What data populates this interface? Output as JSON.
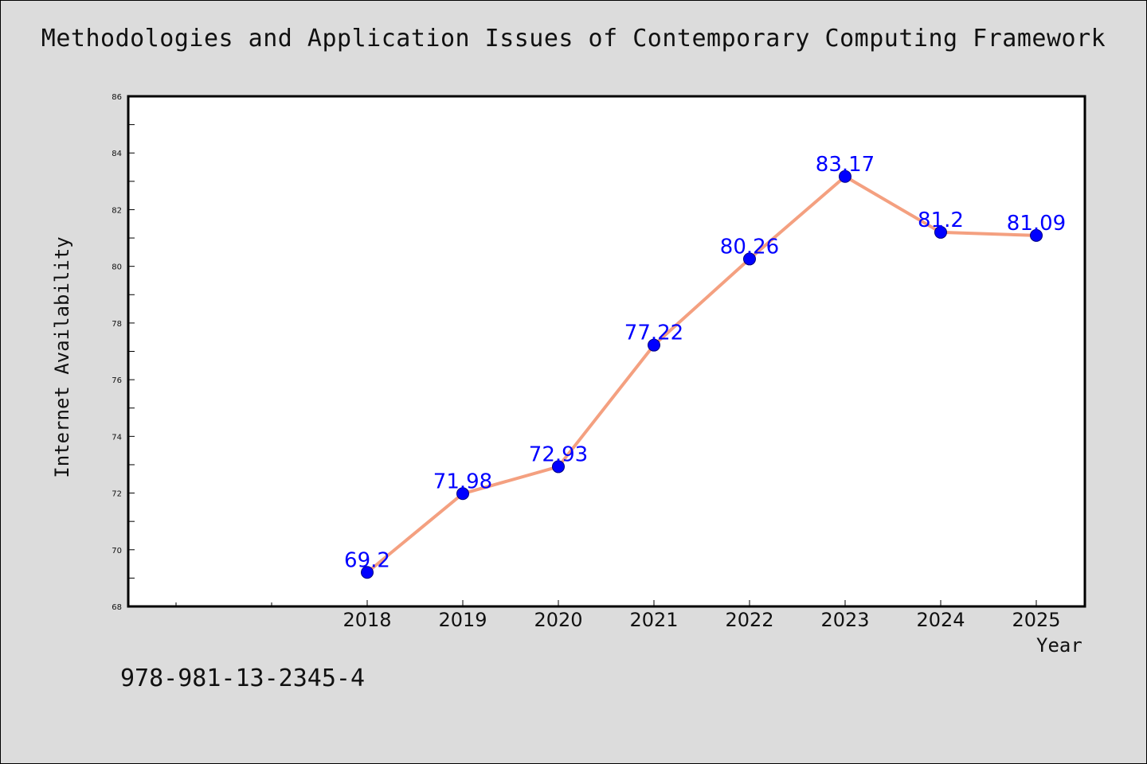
{
  "page": {
    "isbn": "978-981-13-2345-4"
  },
  "chart_data": {
    "type": "line",
    "title": "Methodologies and Application Issues of Contemporary Computing Framework",
    "xlabel": "Year",
    "ylabel": "Internet Availability",
    "x": [
      "2018",
      "2019",
      "2020",
      "2021",
      "2022",
      "2023",
      "2024",
      "2025"
    ],
    "series": [
      {
        "values": [
          69.2,
          71.98,
          72.93,
          77.22,
          80.26,
          83.17,
          81.2,
          81.09
        ],
        "data_labels": [
          "69.2",
          "71.98",
          "72.93",
          "77.22",
          "80.26",
          "83.17",
          "81.2",
          "81.09"
        ],
        "line_color": "#f4a080",
        "marker_color": "#0000ff"
      }
    ],
    "ylim": [
      68,
      86
    ],
    "yticks": [
      "68",
      "70",
      "72",
      "74",
      "76",
      "78",
      "80",
      "82",
      "84",
      "86"
    ],
    "grid": false,
    "legend": "none",
    "colors": {
      "background": "#dcdcdc",
      "plot_background": "#ffffff",
      "data_label": "#0000ff"
    }
  }
}
